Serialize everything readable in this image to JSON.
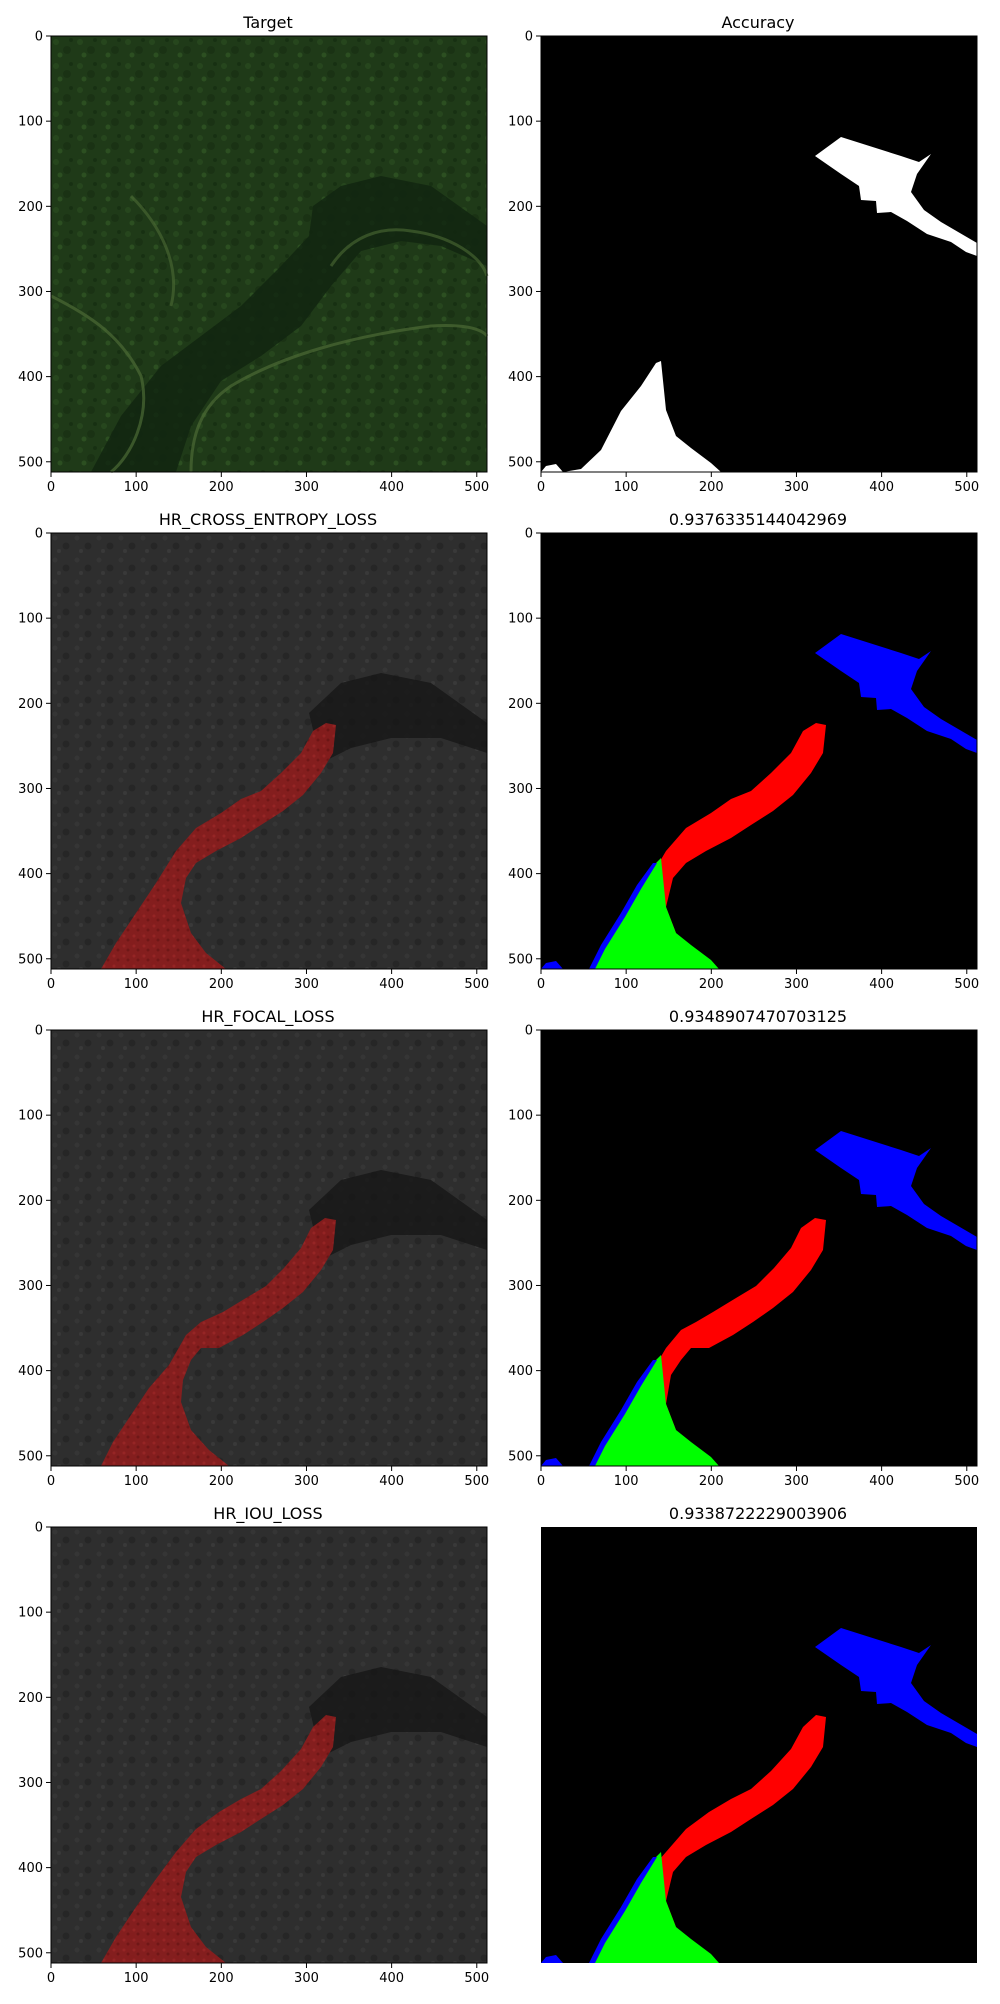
{
  "figure": {
    "background": "#ffffff"
  },
  "colors": {
    "forest_base": "#1f3a18",
    "forest_dark": "#13270f",
    "forest_light": "#3a5a2a",
    "gray_base": "#2d2d2d",
    "gray_dark": "#1b1b1b",
    "overlay_red": "#8b1a1a",
    "mask_white": "#ffffff",
    "mask_black": "#000000",
    "false_positive": "#ff0000",
    "true_positive": "#00ff00",
    "false_negative": "#0000ff"
  },
  "chart_data": [
    {
      "type": "image",
      "panel": "target-image",
      "title": "Target",
      "xlim": [
        0,
        512
      ],
      "ylim": [
        512,
        0
      ],
      "xticks": [
        0,
        100,
        200,
        300,
        400,
        500
      ],
      "yticks": [
        0,
        100,
        200,
        300,
        400,
        500
      ],
      "axes_visible": true
    },
    {
      "type": "image",
      "panel": "accuracy-mask",
      "title": "Accuracy",
      "xlim": [
        0,
        512
      ],
      "ylim": [
        512,
        0
      ],
      "xticks": [
        0,
        100,
        200,
        300,
        400,
        500
      ],
      "yticks": [
        0,
        100,
        200,
        300,
        400,
        500
      ],
      "axes_visible": true
    },
    {
      "type": "image",
      "panel": "cross-entropy-overlay",
      "title": "HR_CROSS_ENTROPY_LOSS",
      "xlim": [
        0,
        512
      ],
      "ylim": [
        512,
        0
      ],
      "xticks": [
        0,
        100,
        200,
        300,
        400,
        500
      ],
      "yticks": [
        0,
        100,
        200,
        300,
        400,
        500
      ],
      "axes_visible": true
    },
    {
      "type": "image",
      "panel": "cross-entropy-error-map",
      "title": "0.9376335144042969",
      "xlim": [
        0,
        512
      ],
      "ylim": [
        512,
        0
      ],
      "xticks": [
        0,
        100,
        200,
        300,
        400,
        500
      ],
      "yticks": [
        0,
        100,
        200,
        300,
        400,
        500
      ],
      "axes_visible": true
    },
    {
      "type": "image",
      "panel": "focal-overlay",
      "title": "HR_FOCAL_LOSS",
      "xlim": [
        0,
        512
      ],
      "ylim": [
        512,
        0
      ],
      "xticks": [
        0,
        100,
        200,
        300,
        400,
        500
      ],
      "yticks": [
        0,
        100,
        200,
        300,
        400,
        500
      ],
      "axes_visible": true
    },
    {
      "type": "image",
      "panel": "focal-error-map",
      "title": "0.9348907470703125",
      "xlim": [
        0,
        512
      ],
      "ylim": [
        512,
        0
      ],
      "xticks": [
        0,
        100,
        200,
        300,
        400,
        500
      ],
      "yticks": [
        0,
        100,
        200,
        300,
        400,
        500
      ],
      "axes_visible": true
    },
    {
      "type": "image",
      "panel": "iou-overlay",
      "title": "HR_IOU_LOSS",
      "xlim": [
        0,
        512
      ],
      "ylim": [
        512,
        0
      ],
      "xticks": [
        0,
        100,
        200,
        300,
        400,
        500
      ],
      "yticks": [
        0,
        100,
        200,
        300,
        400,
        500
      ],
      "axes_visible": true
    },
    {
      "type": "image",
      "panel": "iou-error-map",
      "title": "0.9338722229003906",
      "xlim": [
        0,
        512
      ],
      "ylim": [
        512,
        0
      ],
      "xticks": [],
      "yticks": [],
      "axes_visible": false
    }
  ]
}
